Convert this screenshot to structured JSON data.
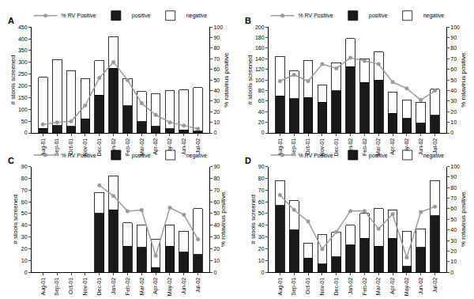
{
  "chart_data": [
    {
      "type": "bar",
      "title": "A",
      "stacked": true,
      "legend": "top",
      "y_label": "# stools screened",
      "y2_label": "% rotavirus positive",
      "categories": [
        "Aug-01",
        "Sep-01",
        "Oct-01",
        "Nov-01",
        "Dec-01",
        "Jan-02",
        "Feb-02",
        "Mar-02",
        "Apr-02",
        "May-02",
        "Jun-02",
        "Jul-02"
      ],
      "ylim": [
        0,
        450
      ],
      "yticks": [
        0,
        50,
        100,
        150,
        200,
        250,
        300,
        350,
        400,
        450
      ],
      "y2lim": [
        0,
        100
      ],
      "y2ticks": [
        0,
        10,
        20,
        30,
        40,
        50,
        60,
        70,
        80,
        90,
        100
      ],
      "series": [
        {
          "name": "negative",
          "type": "bar",
          "color": "#ffffff",
          "values": [
            217,
            280,
            237,
            172,
            147,
            135,
            117,
            127,
            137,
            162,
            170,
            184
          ]
        },
        {
          "name": "positive",
          "type": "bar",
          "color": "#1a1a1a",
          "values": [
            20,
            32,
            28,
            60,
            160,
            275,
            115,
            48,
            28,
            18,
            12,
            8
          ]
        },
        {
          "name": "% RV Positive",
          "type": "line",
          "marker": "circle",
          "axis": "y2",
          "color": "#9a9a9a",
          "values": [
            8,
            10,
            11,
            26,
            52,
            67,
            50,
            28,
            17,
            10,
            7,
            4
          ]
        }
      ]
    },
    {
      "type": "bar",
      "title": "B",
      "stacked": true,
      "legend": "top",
      "y_label": "# stools screened",
      "y2_label": "% rotavirus positive",
      "categories": [
        "Aug-01",
        "Sep-01",
        "Oct-01",
        "Nov-01",
        "Dec-01",
        "Jan-02",
        "Feb-02",
        "Mar-02",
        "Apr-02",
        "May-02",
        "Jun-02",
        "Jul-02"
      ],
      "ylim": [
        0,
        200
      ],
      "yticks": [
        0,
        20,
        40,
        60,
        80,
        100,
        120,
        140,
        160,
        180,
        200
      ],
      "y2lim": [
        0,
        100
      ],
      "y2ticks": [
        0,
        10,
        20,
        30,
        40,
        50,
        60,
        70,
        80,
        90,
        100
      ],
      "series": [
        {
          "name": "negative",
          "type": "bar",
          "color": "#ffffff",
          "values": [
            75,
            52,
            70,
            32,
            53,
            53,
            45,
            53,
            40,
            35,
            40,
            50
          ]
        },
        {
          "name": "positive",
          "type": "bar",
          "color": "#1a1a1a",
          "values": [
            70,
            65,
            67,
            58,
            80,
            125,
            95,
            100,
            37,
            27,
            18,
            33
          ]
        },
        {
          "name": "% RV Positive",
          "type": "line",
          "marker": "circle",
          "axis": "y2",
          "color": "#9a9a9a",
          "values": [
            49,
            55,
            49,
            65,
            61,
            71,
            68,
            65,
            48,
            42,
            31,
            40
          ]
        }
      ]
    },
    {
      "type": "bar",
      "title": "C",
      "stacked": true,
      "legend": "top",
      "y_label": "# stools screened",
      "y2_label": "% rotavirus positive",
      "categories": [
        "Aug-01",
        "Sep-01",
        "Oct-01",
        "Nov-01",
        "Dec-01",
        "Jan-02",
        "Feb-02",
        "Mar-02",
        "Apr-02",
        "May-02",
        "Jun-02",
        "Jul-02"
      ],
      "ylim": [
        0,
        90
      ],
      "yticks": [
        0,
        10,
        20,
        30,
        40,
        50,
        60,
        70,
        80,
        90
      ],
      "y2lim": [
        0,
        90
      ],
      "y2ticks": [
        0,
        10,
        20,
        30,
        40,
        50,
        60,
        70,
        80,
        90
      ],
      "series": [
        {
          "name": "negative",
          "type": "bar",
          "color": "#ffffff",
          "values": [
            null,
            null,
            null,
            null,
            18,
            29,
            20,
            19,
            24,
            18,
            18,
            39
          ]
        },
        {
          "name": "positive",
          "type": "bar",
          "color": "#1a1a1a",
          "values": [
            null,
            null,
            null,
            null,
            50,
            53,
            22,
            21,
            4,
            22,
            17,
            15
          ]
        },
        {
          "name": "% RV Positive",
          "type": "line",
          "marker": "circle",
          "axis": "y2",
          "color": "#9a9a9a",
          "values": [
            null,
            null,
            null,
            null,
            74,
            65,
            52,
            53,
            14,
            55,
            49,
            28
          ]
        }
      ]
    },
    {
      "type": "bar",
      "title": "D",
      "stacked": true,
      "legend": "top",
      "y_label": "# stools screened",
      "y2_label": "% rotavirus positive",
      "categories": [
        "Aug-01",
        "Sep-01",
        "Oct-01",
        "Nov-01",
        "Dec-01",
        "Jan-02",
        "Feb-02",
        "Mar-02",
        "Apr-02",
        "May-02",
        "Jun-02",
        "Jul-02"
      ],
      "ylim": [
        0,
        90
      ],
      "yticks": [
        0,
        10,
        20,
        30,
        40,
        50,
        60,
        70,
        80,
        90
      ],
      "y2lim": [
        0,
        100
      ],
      "y2ticks": [
        0,
        10,
        20,
        30,
        40,
        50,
        60,
        70,
        80,
        90,
        100
      ],
      "series": [
        {
          "name": "negative",
          "type": "bar",
          "color": "#ffffff",
          "values": [
            21,
            25,
            13,
            25,
            21,
            17,
            21,
            32,
            24,
            30,
            16,
            30
          ]
        },
        {
          "name": "positive",
          "type": "bar",
          "color": "#1a1a1a",
          "values": [
            57,
            36,
            12,
            7,
            13,
            23,
            29,
            22,
            29,
            5,
            21,
            48
          ]
        },
        {
          "name": "% RV Positive",
          "type": "line",
          "marker": "circle",
          "axis": "y2",
          "color": "#9a9a9a",
          "values": [
            73,
            59,
            48,
            22,
            38,
            58,
            58,
            41,
            55,
            14,
            57,
            62
          ]
        }
      ]
    }
  ]
}
